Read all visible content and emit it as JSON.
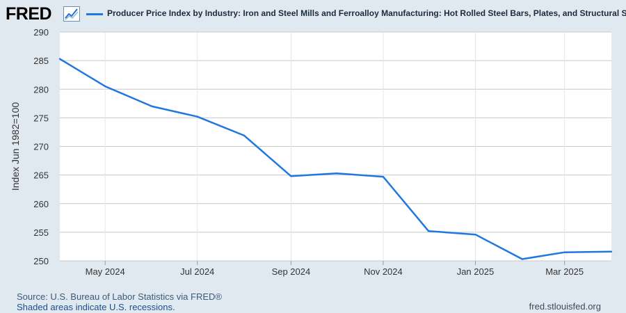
{
  "header": {
    "logo_text": "FRED",
    "logo_icon": "fred-chart-icon",
    "series_title": "Producer Price Index by Industry: Iron and Steel Mills and Ferroalloy Manufacturing: Hot Rolled Steel Bars, Plates, and Structural Shapes"
  },
  "footer": {
    "source": "Source: U.S. Bureau of Labor Statistics via FRED®",
    "shaded": "Shaded areas indicate U.S. recessions.",
    "site": "fred.stlouisfed.org"
  },
  "colors": {
    "line": "#1f77e0",
    "plot_bg": "#ffffff",
    "page_bg": "#e1e9f0",
    "grid": "#c8c8c8"
  },
  "chart_data": {
    "type": "line",
    "title": "Producer Price Index by Industry: Iron and Steel Mills and Ferroalloy Manufacturing: Hot Rolled Steel Bars, Plates, and Structural Shapes",
    "ylabel": "Index Jun 1982=100",
    "xlabel": "",
    "ylim": [
      250,
      290
    ],
    "yticks": [
      250,
      255,
      260,
      265,
      270,
      275,
      280,
      285,
      290
    ],
    "xlim": [
      "2024-04-01",
      "2025-04-01"
    ],
    "xticks": [
      {
        "date": "2024-05-01",
        "label": "May 2024"
      },
      {
        "date": "2024-07-01",
        "label": "Jul 2024"
      },
      {
        "date": "2024-09-01",
        "label": "Sep 2024"
      },
      {
        "date": "2024-11-01",
        "label": "Nov 2024"
      },
      {
        "date": "2025-01-01",
        "label": "Jan 2025"
      },
      {
        "date": "2025-03-01",
        "label": "Mar 2025"
      }
    ],
    "grid": true,
    "series": [
      {
        "x": [
          "2024-04-01",
          "2024-05-01",
          "2024-06-01",
          "2024-07-01",
          "2024-08-01",
          "2024-09-01",
          "2024-10-01",
          "2024-11-01",
          "2024-12-01",
          "2025-01-01",
          "2025-02-01",
          "2025-03-01",
          "2025-04-01"
        ],
        "values": [
          285.3,
          280.5,
          277.0,
          275.2,
          271.9,
          264.8,
          265.3,
          264.7,
          255.2,
          254.6,
          250.3,
          251.5,
          251.6
        ]
      }
    ]
  }
}
